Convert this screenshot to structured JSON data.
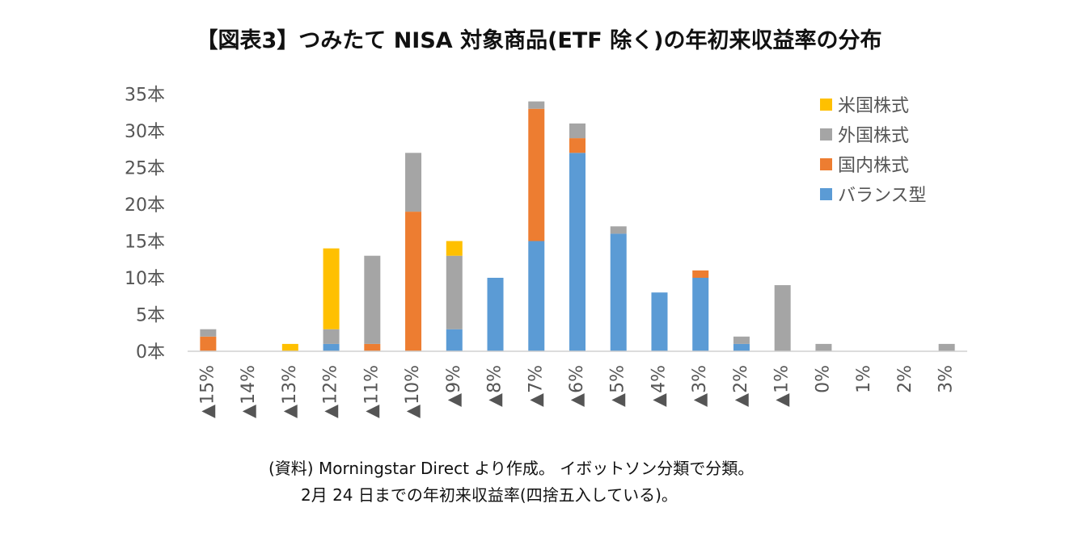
{
  "chart_data": {
    "type": "bar",
    "stacked": true,
    "title": "【図表3】つみたて NISA 対象商品(ETF 除く)の年初来収益率の分布",
    "categories": [
      "▲15%",
      "▲14%",
      "▲13%",
      "▲12%",
      "▲11%",
      "▲10%",
      "▲9%",
      "▲8%",
      "▲7%",
      "▲6%",
      "▲5%",
      "▲4%",
      "▲3%",
      "▲2%",
      "▲1%",
      "0%",
      "1%",
      "2%",
      "3%"
    ],
    "series": [
      {
        "name": "バランス型",
        "color": "#5b9bd5",
        "values": [
          0,
          0,
          0,
          1,
          0,
          0,
          3,
          10,
          15,
          27,
          16,
          8,
          10,
          1,
          0,
          0,
          0,
          0,
          0
        ]
      },
      {
        "name": "国内株式",
        "color": "#ed7d31",
        "values": [
          2,
          0,
          0,
          0,
          1,
          19,
          0,
          0,
          18,
          2,
          0,
          0,
          1,
          0,
          0,
          0,
          0,
          0,
          0
        ]
      },
      {
        "name": "外国株式",
        "color": "#a5a5a5",
        "values": [
          1,
          0,
          0,
          2,
          12,
          8,
          10,
          0,
          1,
          2,
          1,
          0,
          0,
          1,
          9,
          1,
          0,
          0,
          1
        ]
      },
      {
        "name": "米国株式",
        "color": "#ffc000",
        "values": [
          0,
          0,
          1,
          11,
          0,
          0,
          2,
          0,
          0,
          0,
          0,
          0,
          0,
          0,
          0,
          0,
          0,
          0,
          0
        ]
      }
    ],
    "legend_order": [
      "米国株式",
      "外国株式",
      "国内株式",
      "バランス型"
    ],
    "y_ticks": [
      "0本",
      "5本",
      "10本",
      "15本",
      "20本",
      "25本",
      "30本",
      "35本"
    ],
    "ylim": [
      0,
      35
    ],
    "xlabel": "",
    "ylabel": "",
    "grid": false,
    "legend_position": "top-right"
  },
  "notes": {
    "source": "(資料) Morningstar Direct より作成。 イボットソン分類で分類。",
    "detail": "2月 24 日までの年初来収益率(四捨五入している)。"
  }
}
